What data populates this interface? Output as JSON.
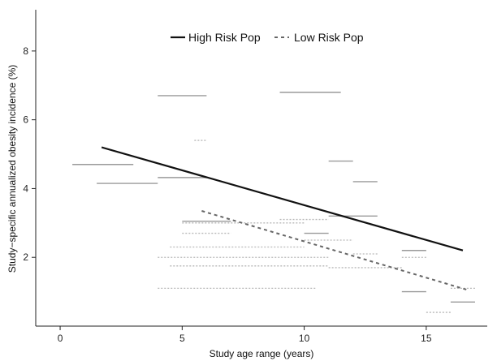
{
  "chart_data": {
    "type": "line",
    "title": "",
    "xlabel": "Study age range (years)",
    "ylabel": "Study−specific annualized obesity incidence (%)",
    "xlim": [
      -1,
      17.5
    ],
    "ylim": [
      0,
      9.2
    ],
    "x_ticks": [
      0,
      5,
      10,
      15
    ],
    "y_ticks": [
      2,
      4,
      6,
      8
    ],
    "grid": false,
    "legend_position": "top-center",
    "series": [
      {
        "name": "High Risk Pop",
        "style": "solid",
        "color": "#111111",
        "trend": [
          [
            1.7,
            5.2
          ],
          [
            16.5,
            2.2
          ]
        ],
        "study_ranges": [
          {
            "x_start": 0.5,
            "x_end": 3.0,
            "y": 4.7
          },
          {
            "x_start": 1.5,
            "x_end": 4.0,
            "y": 4.15
          },
          {
            "x_start": 4.0,
            "x_end": 6.0,
            "y": 6.7
          },
          {
            "x_start": 4.0,
            "x_end": 6.0,
            "y": 4.32
          },
          {
            "x_start": 9.0,
            "x_end": 11.5,
            "y": 6.8
          },
          {
            "x_start": 11.0,
            "x_end": 12.0,
            "y": 4.8
          },
          {
            "x_start": 12.0,
            "x_end": 13.0,
            "y": 4.2
          },
          {
            "x_start": 11.0,
            "x_end": 13.0,
            "y": 3.2
          },
          {
            "x_start": 10.0,
            "x_end": 11.0,
            "y": 2.7
          },
          {
            "x_start": 14.0,
            "x_end": 15.0,
            "y": 2.2
          },
          {
            "x_start": 14.0,
            "x_end": 15.0,
            "y": 1.0
          },
          {
            "x_start": 16.0,
            "x_end": 17.0,
            "y": 0.7
          },
          {
            "x_start": 5.0,
            "x_end": 7.0,
            "y": 3.05
          }
        ]
      },
      {
        "name": "Low Risk Pop",
        "style": "dashed",
        "color": "#666666",
        "trend": [
          [
            5.8,
            3.35
          ],
          [
            16.7,
            1.05
          ]
        ],
        "study_ranges": [
          {
            "x_start": 5.5,
            "x_end": 6.0,
            "y": 5.4
          },
          {
            "x_start": 5.0,
            "x_end": 10.0,
            "y": 3.0
          },
          {
            "x_start": 9.0,
            "x_end": 11.0,
            "y": 3.1
          },
          {
            "x_start": 5.0,
            "x_end": 7.0,
            "y": 2.7
          },
          {
            "x_start": 4.5,
            "x_end": 10.0,
            "y": 2.3
          },
          {
            "x_start": 10.0,
            "x_end": 12.0,
            "y": 2.5
          },
          {
            "x_start": 4.0,
            "x_end": 11.0,
            "y": 2.0
          },
          {
            "x_start": 12.0,
            "x_end": 13.0,
            "y": 2.1
          },
          {
            "x_start": 4.5,
            "x_end": 11.0,
            "y": 1.75
          },
          {
            "x_start": 11.0,
            "x_end": 14.0,
            "y": 1.7
          },
          {
            "x_start": 14.0,
            "x_end": 15.0,
            "y": 2.0
          },
          {
            "x_start": 4.0,
            "x_end": 10.5,
            "y": 1.1
          },
          {
            "x_start": 15.0,
            "x_end": 16.0,
            "y": 0.4
          },
          {
            "x_start": 16.0,
            "x_end": 17.0,
            "y": 1.1
          }
        ]
      }
    ]
  }
}
